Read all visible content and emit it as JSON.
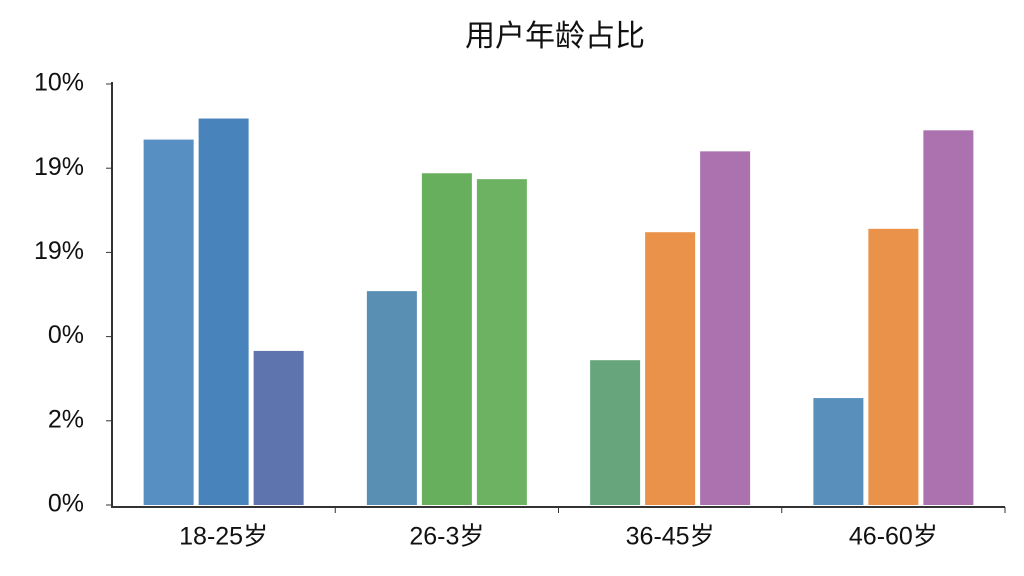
{
  "chart_data": {
    "type": "bar",
    "title": "用户年龄占比",
    "categories": [
      "18-25岁",
      "26-3岁",
      "36-45岁",
      "46-60岁"
    ],
    "series": [
      {
        "colors": [
          "#4a86bd",
          "#4a86ad",
          "#5a9e72",
          "#4a86b5"
        ],
        "values": [
          4.34,
          2.54,
          1.72,
          1.27
        ]
      },
      {
        "colors": [
          "#3a78b5",
          "#5aa84e",
          "#e8893a",
          "#e8893a"
        ],
        "values": [
          4.59,
          3.94,
          3.24,
          3.28
        ]
      },
      {
        "colors": [
          "#4f68a8",
          "#5fab55",
          "#a466a8",
          "#a466a8"
        ],
        "values": [
          1.83,
          3.87,
          4.2,
          4.45
        ]
      }
    ],
    "ylim": [
      0,
      5
    ],
    "yticks": [
      {
        "value": 0,
        "label": "0%"
      },
      {
        "value": 1,
        "label": "2%"
      },
      {
        "value": 2,
        "label": "0%"
      },
      {
        "value": 3,
        "label": "19%"
      },
      {
        "value": 4,
        "label": "19%"
      },
      {
        "value": 5,
        "label": "10%"
      }
    ]
  }
}
